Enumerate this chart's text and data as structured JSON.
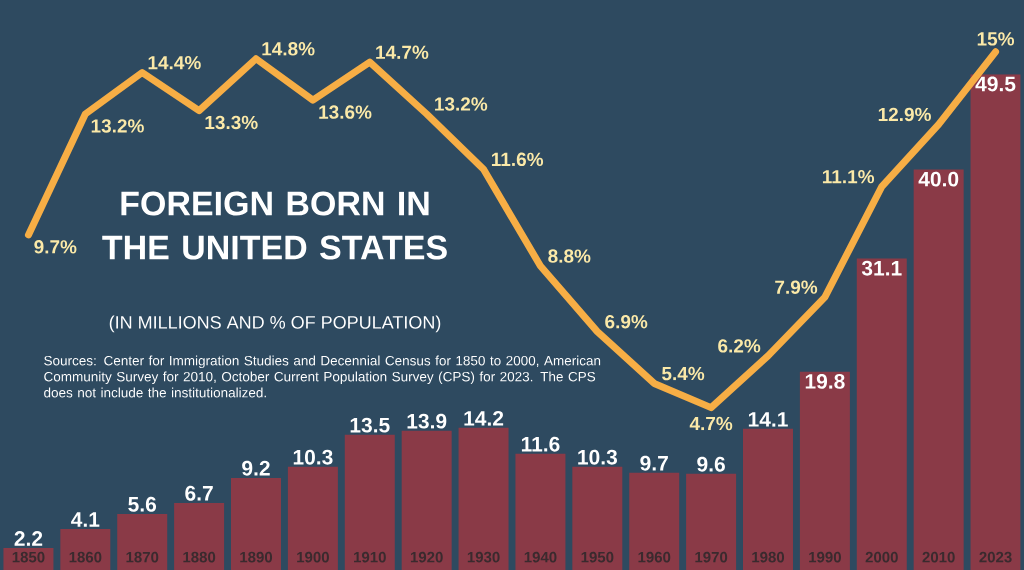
{
  "chart_data": {
    "type": "bar",
    "title": "FOREIGN BORN IN THE UNITED STATES",
    "subtitle": "(IN MILLIONS AND % OF POPULATION)",
    "annotations": [
      "Sources: Center for Immigration Studies and Decennial Census for 1850 to 2000, American Community Survey for 2010, October Current Population Survey (CPS) for 2023. The CPS does not include the institutionalized."
    ],
    "categories": [
      "1850",
      "1860",
      "1870",
      "1880",
      "1890",
      "1900",
      "1910",
      "1920",
      "1930",
      "1940",
      "1950",
      "1960",
      "1970",
      "1980",
      "1990",
      "2000",
      "2010",
      "2023"
    ],
    "series": [
      {
        "color": "#8a3a47",
        "values": [
          2.2,
          4.1,
          5.6,
          6.7,
          9.2,
          10.3,
          13.5,
          13.9,
          14.2,
          11.6,
          10.3,
          9.7,
          9.6,
          14.1,
          19.8,
          31.1,
          40.0,
          49.5
        ],
        "value_labels": [
          "2.2",
          "4.1",
          "5.6",
          "6.7",
          "9.2",
          "10.3",
          "13.5",
          "13.9",
          "14.2",
          "11.6",
          "10.3",
          "9.7",
          "9.6",
          "14.1",
          "19.8",
          "31.1",
          "40.0",
          "49.5"
        ]
      },
      {
        "type": "line",
        "axis": "y2",
        "color": "#f7ae45",
        "values": [
          9.7,
          13.2,
          14.4,
          13.3,
          14.8,
          13.6,
          14.7,
          13.2,
          11.6,
          8.8,
          6.9,
          5.4,
          4.7,
          6.2,
          7.9,
          11.1,
          12.9,
          15
        ],
        "value_labels": [
          "9.7%",
          "13.2%",
          "14.4%",
          "13.3%",
          "14.8%",
          "13.6%",
          "14.7%",
          "13.2%",
          "11.6%",
          "8.8%",
          "6.9%",
          "5.4%",
          "4.7%",
          "6.2%",
          "7.9%",
          "11.1%",
          "12.9%",
          "15%"
        ]
      }
    ],
    "tick_labels": "x"
  }
}
